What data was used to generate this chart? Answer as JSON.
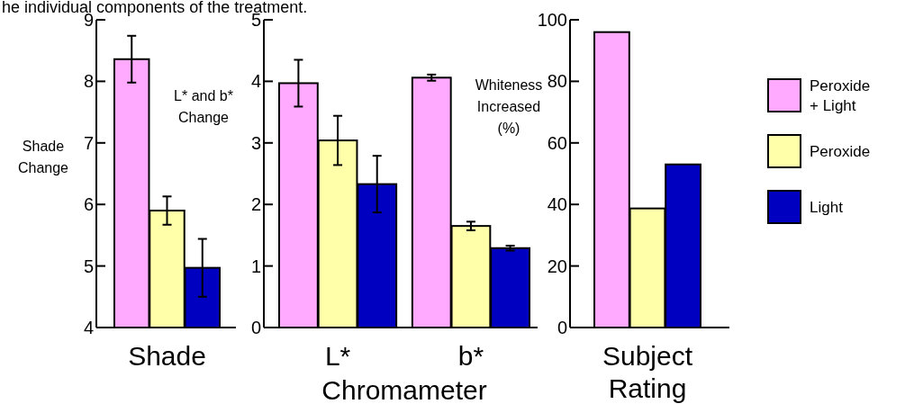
{
  "chart_data": [
    {
      "type": "bar",
      "annotations": [
        "he individual components of the treatment."
      ],
      "ylabel": "Shade Change",
      "categories": [
        "Shade"
      ],
      "ylim": [
        4,
        9
      ],
      "yticks": [
        4,
        5,
        6,
        7,
        8,
        9
      ],
      "grid": false,
      "legend": false,
      "series": [
        {
          "color": "#ffaaff",
          "values": [
            8.36
          ],
          "errors": [
            0.38
          ]
        },
        {
          "color": "#ffffaa",
          "values": [
            5.9
          ],
          "errors": [
            0.23
          ]
        },
        {
          "color": "#0000c0",
          "values": [
            4.97
          ],
          "errors": [
            0.47
          ]
        }
      ]
    },
    {
      "type": "bar",
      "ylabel": "L* and b* Change",
      "xlabel": "Chromameter",
      "categories": [
        "L*",
        "b*"
      ],
      "ylim": [
        0,
        5
      ],
      "yticks": [
        0,
        1,
        2,
        3,
        4,
        5
      ],
      "grid": false,
      "legend": false,
      "series": [
        {
          "color": "#ffaaff",
          "values": [
            3.97,
            4.06
          ],
          "errors": [
            0.38,
            0.05
          ]
        },
        {
          "color": "#ffffaa",
          "values": [
            3.04,
            1.65
          ],
          "errors": [
            0.4,
            0.07
          ]
        },
        {
          "color": "#0000c0",
          "values": [
            2.33,
            1.29
          ],
          "errors": [
            0.46,
            0.04
          ]
        }
      ]
    },
    {
      "type": "bar",
      "ylabel": "Whiteness Increased (%)",
      "categories": [
        "Subject Rating"
      ],
      "ylim": [
        0,
        100
      ],
      "yticks": [
        0,
        20,
        40,
        60,
        80,
        100
      ],
      "grid": false,
      "legend": "right",
      "series": [
        {
          "name": "Peroxide + Light",
          "color": "#ffaaff",
          "values": [
            96
          ]
        },
        {
          "name": "Peroxide",
          "color": "#ffffaa",
          "values": [
            38.7
          ]
        },
        {
          "name": "Light",
          "color": "#0000c0",
          "values": [
            53
          ]
        }
      ]
    }
  ]
}
